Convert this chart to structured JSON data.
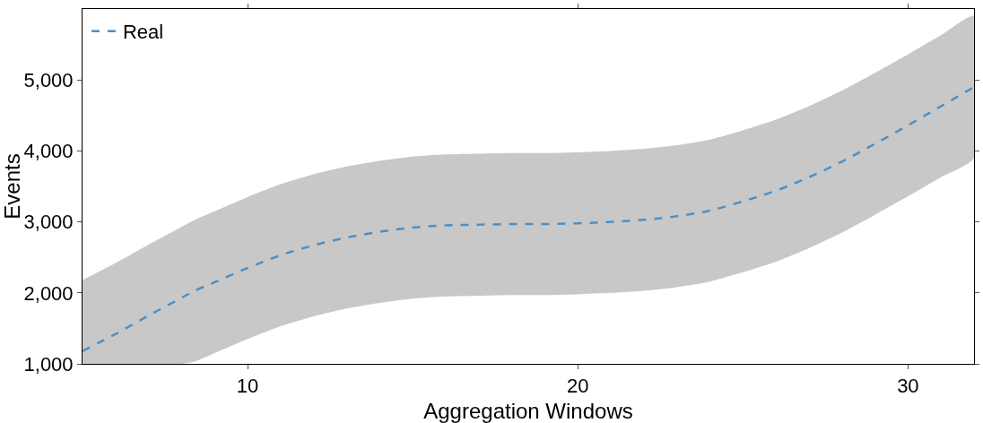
{
  "chart_data": {
    "type": "line",
    "xlabel": "Aggregation Windows",
    "ylabel": "Events",
    "x": [
      5,
      6,
      7,
      8,
      8.4,
      9,
      10,
      11,
      12,
      13,
      14,
      15,
      16,
      17,
      18,
      19,
      20,
      21,
      22,
      23,
      24,
      25,
      26,
      27,
      28,
      29,
      30,
      31,
      32
    ],
    "series": [
      {
        "name": "Real",
        "color": "#4a90c8",
        "line_style": "dashed",
        "values": [
          1180,
          1420,
          1680,
          1930,
          2030,
          2150,
          2350,
          2530,
          2670,
          2780,
          2860,
          2920,
          2950,
          2960,
          2970,
          2970,
          2980,
          3000,
          3030,
          3080,
          3160,
          3290,
          3440,
          3630,
          3850,
          4100,
          4360,
          4630,
          4900
        ],
        "upper": [
          2180,
          2420,
          2680,
          2930,
          3030,
          3150,
          3350,
          3530,
          3670,
          3780,
          3860,
          3920,
          3950,
          3960,
          3970,
          3970,
          3980,
          4000,
          4030,
          4080,
          4160,
          4290,
          4440,
          4630,
          4850,
          5100,
          5360,
          5630,
          5900
        ],
        "lower": [
          1000,
          1000,
          1000,
          1000,
          1030,
          1150,
          1350,
          1530,
          1670,
          1780,
          1860,
          1920,
          1950,
          1960,
          1970,
          1970,
          1980,
          2000,
          2030,
          2080,
          2160,
          2290,
          2440,
          2630,
          2850,
          3100,
          3360,
          3630,
          3900
        ]
      }
    ],
    "xlim": [
      5,
      32
    ],
    "ylim": [
      1000,
      6000
    ],
    "xticks": [
      10,
      20,
      30
    ],
    "yticks": [
      {
        "value": 1000,
        "label": "1,000"
      },
      {
        "value": 2000,
        "label": "2,000"
      },
      {
        "value": 3000,
        "label": "3,000"
      },
      {
        "value": 4000,
        "label": "4,000"
      },
      {
        "value": 5000,
        "label": "5,000"
      }
    ],
    "legend": "top left",
    "marker": "none"
  }
}
